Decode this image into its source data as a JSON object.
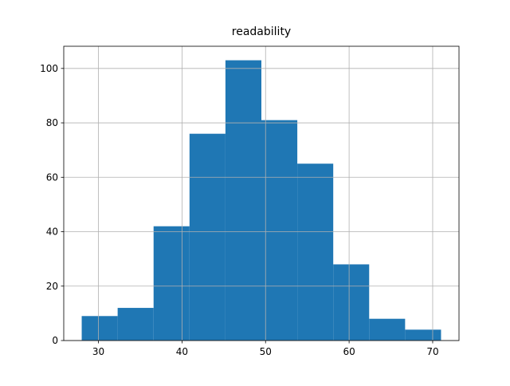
{
  "chart_data": {
    "type": "histogram",
    "title": "readability",
    "bins": [
      28,
      32.3,
      36.6,
      40.9,
      45.2,
      49.5,
      53.8,
      58.1,
      62.4,
      66.7,
      71
    ],
    "counts": [
      9,
      12,
      42,
      76,
      103,
      81,
      65,
      28,
      8,
      4
    ],
    "color": "#1f77b4",
    "xlim": [
      25.85,
      73.15
    ],
    "xticks": [
      30,
      40,
      50,
      60,
      70
    ],
    "ylim": [
      0,
      108.15
    ],
    "yticks": [
      0,
      20,
      40,
      60,
      80,
      100
    ],
    "grid": true
  }
}
